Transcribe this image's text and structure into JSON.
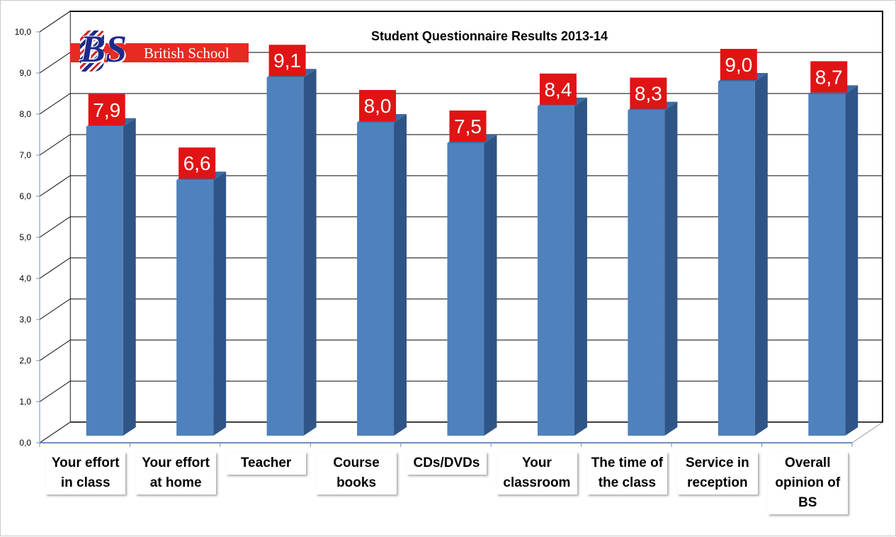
{
  "chart_data": {
    "type": "bar",
    "title": "Student Questionnaire Results 2013-14",
    "categories": [
      "Your effort\nin class",
      "Your effort\nat home",
      "Teacher",
      "Course\nbooks",
      "CDs/DVDs",
      "Your\nclassroom",
      "The time of\nthe class",
      "Service in\nreception",
      "Overall\nopinion of\nBS"
    ],
    "values": [
      7.9,
      6.6,
      9.1,
      8.0,
      7.5,
      8.4,
      8.3,
      9.0,
      8.7
    ],
    "data_labels": [
      "7,9",
      "6,6",
      "9,1",
      "8,0",
      "7,5",
      "8,4",
      "8,3",
      "9,0",
      "8,7"
    ],
    "ylim": [
      0,
      10
    ],
    "y_ticks": [
      "0,0",
      "1,0",
      "2,0",
      "3,0",
      "4,0",
      "5,0",
      "6,0",
      "7,0",
      "8,0",
      "9,0",
      "10,0"
    ],
    "grid": true,
    "legend": "none",
    "xlabel": "",
    "ylabel": "",
    "colors": {
      "bar_front": "#4f81bd",
      "bar_side": "#2f5587",
      "bar_top": "#3d6aa3",
      "label_bg": "#e01414",
      "label_text": "#ffffff",
      "grid": "#000000"
    }
  },
  "logo": {
    "mark": "BS",
    "text": "British School",
    "icon": "union-jack-icon"
  }
}
